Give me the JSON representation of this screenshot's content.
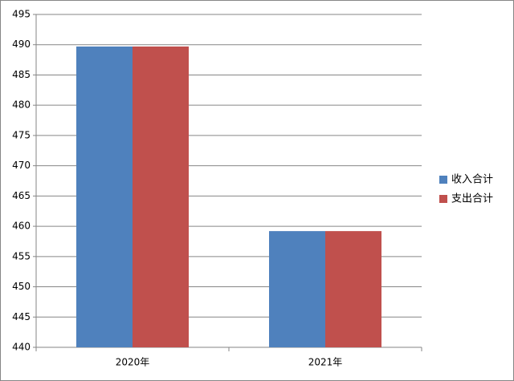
{
  "chart_data": {
    "type": "bar",
    "categories": [
      "2020年",
      "2021年"
    ],
    "series": [
      {
        "name": "收入合计",
        "color": "#4f81bd",
        "values": [
          489.7,
          459.2
        ]
      },
      {
        "name": "支出合计",
        "color": "#c0504d",
        "values": [
          489.7,
          459.2
        ]
      }
    ],
    "ylim": [
      440,
      495
    ],
    "yticks": [
      440,
      445,
      450,
      455,
      460,
      465,
      470,
      475,
      480,
      485,
      490,
      495
    ],
    "grid": true,
    "legend": "right"
  }
}
